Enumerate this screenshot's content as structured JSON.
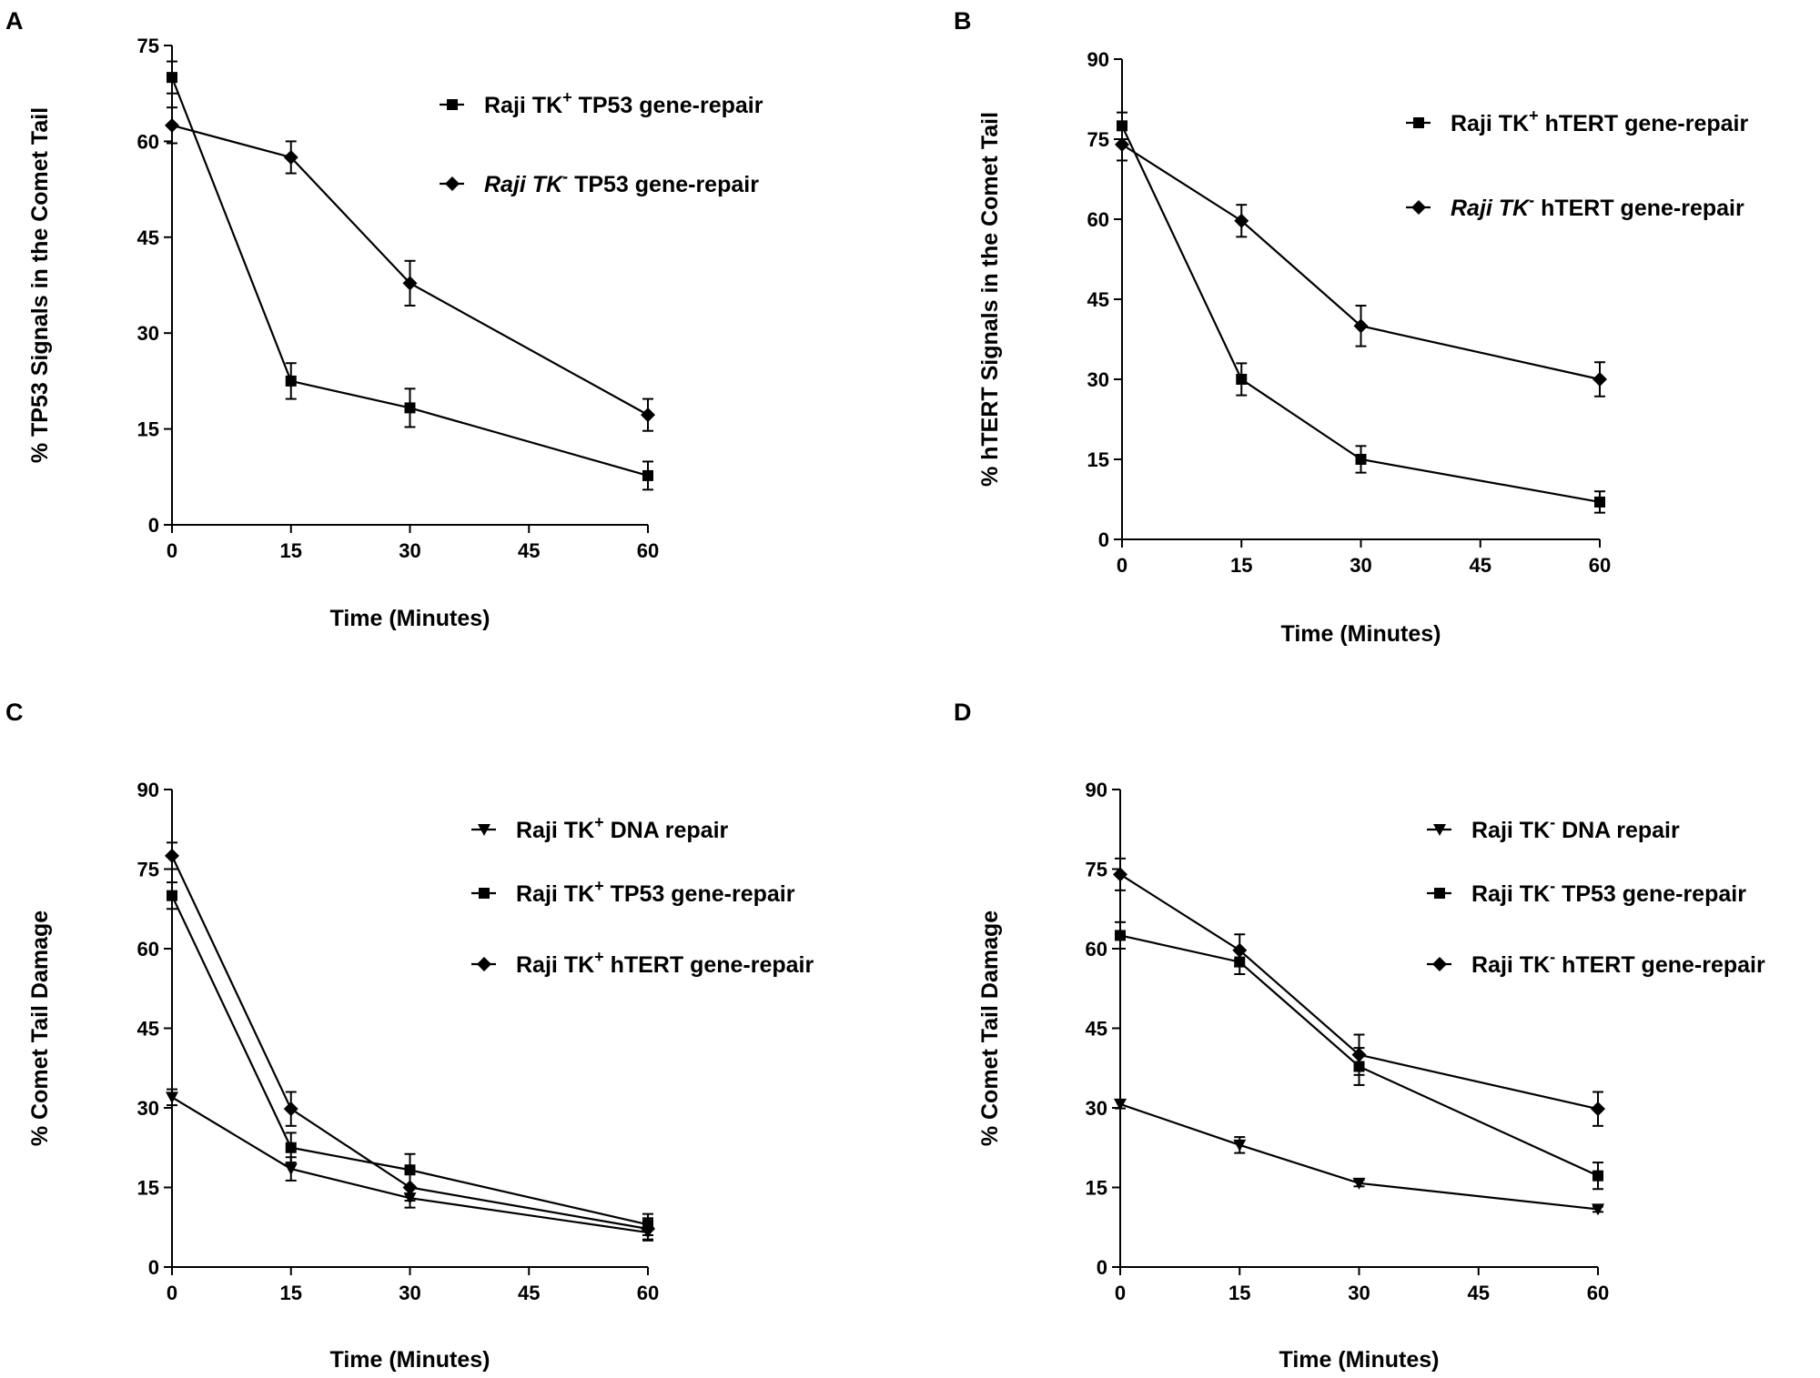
{
  "figure": {
    "background": "#ffffff",
    "ink": "#000000"
  },
  "chart_data": [
    {
      "panel": "A",
      "type": "line",
      "x": [
        0,
        15,
        30,
        60
      ],
      "xlabel": "Time (Minutes)",
      "ylabel": "% TP53 Signals in the Comet Tail",
      "xlim": [
        0,
        60
      ],
      "ylim": [
        0,
        75
      ],
      "xticks": [
        0,
        15,
        30,
        45,
        60
      ],
      "yticks": [
        0,
        15,
        30,
        45,
        60,
        75
      ],
      "grid": false,
      "legend_position": "top-right",
      "series": [
        {
          "name": "Raji TK+ TP53 gene-repair",
          "legend_base": "Raji TK",
          "legend_sup": "+",
          "legend_rest": "TP53 gene-repair",
          "italic": false,
          "marker": "square",
          "values": [
            70,
            22.5,
            18.3,
            7.7
          ],
          "errors": [
            2.5,
            2.8,
            3.0,
            2.2
          ]
        },
        {
          "name": "Raji TK- TP53 gene-repair",
          "legend_base": "Raji TK",
          "legend_sup": "-",
          "legend_rest": "TP53 gene-repair",
          "italic": true,
          "marker": "diamond",
          "values": [
            62.5,
            57.5,
            37.8,
            17.2
          ],
          "errors": [
            2.8,
            2.5,
            3.5,
            2.5
          ]
        }
      ]
    },
    {
      "panel": "B",
      "type": "line",
      "x": [
        0,
        15,
        30,
        60
      ],
      "xlabel": "Time (Minutes)",
      "ylabel": "% hTERT Signals in the Comet Tail",
      "xlim": [
        0,
        60
      ],
      "ylim": [
        0,
        90
      ],
      "xticks": [
        0,
        15,
        30,
        45,
        60
      ],
      "yticks": [
        0,
        15,
        30,
        45,
        60,
        75,
        90
      ],
      "grid": false,
      "legend_position": "top-right",
      "series": [
        {
          "name": "Raji TK+ hTERT gene-repair",
          "legend_base": "Raji TK",
          "legend_sup": "+",
          "legend_rest": "hTERT gene-repair",
          "italic": false,
          "marker": "square",
          "values": [
            77.5,
            30,
            15,
            7
          ],
          "errors": [
            2.5,
            3.0,
            2.5,
            2.0
          ]
        },
        {
          "name": "Raji TK- hTERT gene-repair",
          "legend_base": "Raji TK",
          "legend_sup": "-",
          "legend_rest": "hTERT gene-repair",
          "italic": true,
          "marker": "diamond",
          "values": [
            74,
            59.7,
            40,
            30
          ],
          "errors": [
            3.0,
            3.0,
            3.8,
            3.2
          ]
        }
      ]
    },
    {
      "panel": "C",
      "type": "line",
      "x": [
        0,
        15,
        30,
        60
      ],
      "xlabel": "Time (Minutes)",
      "ylabel": "% Comet Tail Damage",
      "xlim": [
        0,
        60
      ],
      "ylim": [
        0,
        90
      ],
      "xticks": [
        0,
        15,
        30,
        45,
        60
      ],
      "yticks": [
        0,
        15,
        30,
        45,
        60,
        75,
        90
      ],
      "grid": false,
      "legend_position": "top-right",
      "series": [
        {
          "name": "Raji TK+ DNA repair",
          "legend_base": "Raji TK",
          "legend_sup": "+",
          "legend_rest": "DNA repair",
          "italic": false,
          "marker": "triangle-down",
          "values": [
            32,
            18.5,
            13,
            6.5
          ],
          "errors": [
            1.5,
            2.2,
            1.8,
            1.5
          ]
        },
        {
          "name": "Raji TK+ TP53 gene-repair",
          "legend_base": "Raji TK",
          "legend_sup": "+",
          "legend_rest": "TP53 gene-repair",
          "italic": false,
          "marker": "square",
          "values": [
            70,
            22.5,
            18.3,
            8
          ],
          "errors": [
            2.5,
            2.8,
            3.0,
            2.0
          ]
        },
        {
          "name": "Raji TK+ hTERT gene-repair",
          "legend_base": "Raji TK",
          "legend_sup": "+",
          "legend_rest": "hTERT gene-repair",
          "italic": false,
          "marker": "diamond",
          "values": [
            77.5,
            29.8,
            15,
            7.2
          ],
          "errors": [
            2.5,
            3.2,
            2.5,
            2.0
          ]
        }
      ]
    },
    {
      "panel": "D",
      "type": "line",
      "x": [
        0,
        15,
        30,
        60
      ],
      "xlabel": "Time (Minutes)",
      "ylabel": "% Comet Tail Damage",
      "xlim": [
        0,
        60
      ],
      "ylim": [
        0,
        90
      ],
      "xticks": [
        0,
        15,
        30,
        45,
        60
      ],
      "yticks": [
        0,
        15,
        30,
        45,
        60,
        75,
        90
      ],
      "grid": false,
      "legend_position": "top-right",
      "series": [
        {
          "name": "Raji TK- DNA repair",
          "legend_base": "Raji TK",
          "legend_sup": "-",
          "legend_rest": "DNA repair",
          "italic": false,
          "marker": "triangle-down",
          "values": [
            30.7,
            23,
            15.8,
            10.9
          ],
          "errors": [
            0.8,
            1.5,
            0.6,
            0.5
          ]
        },
        {
          "name": "Raji TK- TP53 gene-repair",
          "legend_base": "Raji TK",
          "legend_sup": "-",
          "legend_rest": "TP53 gene-repair",
          "italic": false,
          "marker": "square",
          "values": [
            62.5,
            57.5,
            37.8,
            17.2
          ],
          "errors": [
            2.5,
            2.3,
            3.5,
            2.5
          ]
        },
        {
          "name": "Raji TK- hTERT gene-repair",
          "legend_base": "Raji TK",
          "legend_sup": "-",
          "legend_rest": "hTERT gene-repair",
          "italic": false,
          "marker": "diamond",
          "values": [
            74,
            59.7,
            40,
            29.8
          ],
          "errors": [
            3.0,
            3.0,
            3.8,
            3.2
          ]
        }
      ]
    }
  ]
}
